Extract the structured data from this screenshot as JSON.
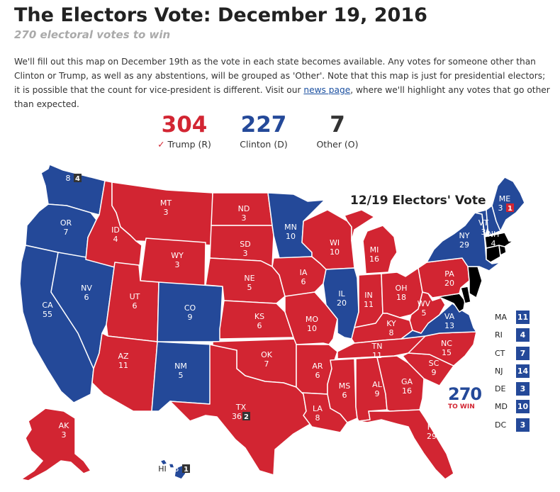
{
  "page": {
    "title": "The Electors Vote: December 19, 2016",
    "subtitle": "270 electoral votes to win",
    "intro_before_link": "We'll fill out this map on December 19th as the vote in each state becomes available. Any votes for someone other than Clinton or Trump, as well as any abstentions, will be grouped as 'Other'. Note that this map is just for presidential electors; it is possible that the count for vice-president is different. Visit our ",
    "intro_link": "news page",
    "intro_after_link": ", where we'll highlight any votes that go other than expected."
  },
  "totals": {
    "trump": {
      "value": "304",
      "check": "✓",
      "label": "Trump (R)",
      "color": "#d22532"
    },
    "clinton": {
      "value": "227",
      "label": "Clinton (D)",
      "color": "#244999"
    },
    "other": {
      "value": "7",
      "label": "Other (O)",
      "color": "#333333"
    }
  },
  "map": {
    "title": "12/19 Electors' Vote",
    "colors": {
      "rep": "#d22532",
      "dem": "#244999",
      "border": "#ffffff",
      "badge": "#333333"
    },
    "states": [
      {
        "abbr": "WA",
        "ev": "8",
        "winner": "dem",
        "other": "4"
      },
      {
        "abbr": "OR",
        "ev": "7",
        "winner": "dem"
      },
      {
        "abbr": "CA",
        "ev": "55",
        "winner": "dem"
      },
      {
        "abbr": "NV",
        "ev": "6",
        "winner": "dem"
      },
      {
        "abbr": "ID",
        "ev": "4",
        "winner": "rep"
      },
      {
        "abbr": "MT",
        "ev": "3",
        "winner": "rep"
      },
      {
        "abbr": "WY",
        "ev": "3",
        "winner": "rep"
      },
      {
        "abbr": "UT",
        "ev": "6",
        "winner": "rep"
      },
      {
        "abbr": "AZ",
        "ev": "11",
        "winner": "rep"
      },
      {
        "abbr": "CO",
        "ev": "9",
        "winner": "dem"
      },
      {
        "abbr": "NM",
        "ev": "5",
        "winner": "dem"
      },
      {
        "abbr": "ND",
        "ev": "3",
        "winner": "rep"
      },
      {
        "abbr": "SD",
        "ev": "3",
        "winner": "rep"
      },
      {
        "abbr": "NE",
        "ev": "5",
        "winner": "rep"
      },
      {
        "abbr": "KS",
        "ev": "6",
        "winner": "rep"
      },
      {
        "abbr": "OK",
        "ev": "7",
        "winner": "rep"
      },
      {
        "abbr": "TX",
        "ev": "36",
        "winner": "rep",
        "other": "2"
      },
      {
        "abbr": "MN",
        "ev": "10",
        "winner": "dem"
      },
      {
        "abbr": "IA",
        "ev": "6",
        "winner": "rep"
      },
      {
        "abbr": "MO",
        "ev": "10",
        "winner": "rep"
      },
      {
        "abbr": "AR",
        "ev": "6",
        "winner": "rep"
      },
      {
        "abbr": "LA",
        "ev": "8",
        "winner": "rep"
      },
      {
        "abbr": "WI",
        "ev": "10",
        "winner": "rep"
      },
      {
        "abbr": "IL",
        "ev": "20",
        "winner": "dem"
      },
      {
        "abbr": "MI",
        "ev": "16",
        "winner": "rep"
      },
      {
        "abbr": "IN",
        "ev": "11",
        "winner": "rep"
      },
      {
        "abbr": "OH",
        "ev": "18",
        "winner": "rep"
      },
      {
        "abbr": "KY",
        "ev": "8",
        "winner": "rep"
      },
      {
        "abbr": "TN",
        "ev": "11",
        "winner": "rep"
      },
      {
        "abbr": "MS",
        "ev": "6",
        "winner": "rep"
      },
      {
        "abbr": "AL",
        "ev": "9",
        "winner": "rep"
      },
      {
        "abbr": "GA",
        "ev": "16",
        "winner": "rep"
      },
      {
        "abbr": "FL",
        "ev": "29",
        "winner": "rep"
      },
      {
        "abbr": "SC",
        "ev": "9",
        "winner": "rep"
      },
      {
        "abbr": "NC",
        "ev": "15",
        "winner": "rep"
      },
      {
        "abbr": "VA",
        "ev": "13",
        "winner": "dem"
      },
      {
        "abbr": "WV",
        "ev": "5",
        "winner": "rep"
      },
      {
        "abbr": "PA",
        "ev": "20",
        "winner": "rep"
      },
      {
        "abbr": "NY",
        "ev": "29",
        "winner": "dem"
      },
      {
        "abbr": "VT",
        "ev": "3",
        "winner": "dem"
      },
      {
        "abbr": "NH",
        "ev": "4",
        "winner": "dem"
      },
      {
        "abbr": "ME",
        "ev": "3",
        "winner": "dem",
        "other": "1",
        "other_color": "#d22532"
      },
      {
        "abbr": "AK",
        "ev": "3",
        "winner": "rep"
      },
      {
        "abbr": "HI",
        "ev": "3",
        "winner": "dem",
        "other": "1"
      }
    ],
    "small_states": [
      {
        "abbr": "MA",
        "ev": "11"
      },
      {
        "abbr": "RI",
        "ev": "4"
      },
      {
        "abbr": "CT",
        "ev": "7"
      },
      {
        "abbr": "NJ",
        "ev": "14"
      },
      {
        "abbr": "DE",
        "ev": "3"
      },
      {
        "abbr": "MD",
        "ev": "10"
      },
      {
        "abbr": "DC",
        "ev": "3"
      }
    ]
  },
  "logo": {
    "number": "270",
    "text": "TO WIN"
  }
}
